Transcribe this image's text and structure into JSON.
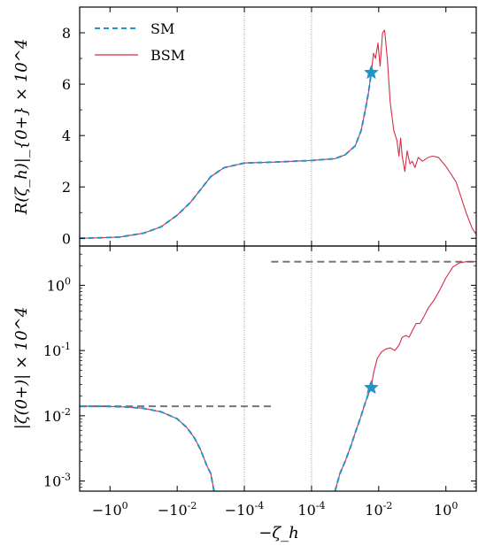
{
  "chart_data": [
    {
      "type": "line",
      "panel": "top",
      "ylabel": "R(ζ_h)|_{0+} × 10^4",
      "ylim": [
        -0.3,
        9.0
      ],
      "yticks": [
        {
          "value": 0,
          "label": "0"
        },
        {
          "value": 2,
          "label": "2"
        },
        {
          "value": 4,
          "label": "4"
        },
        {
          "value": 6,
          "label": "6"
        },
        {
          "value": 8,
          "label": "8"
        }
      ],
      "xscale": "symlog",
      "legend": {
        "placement": "top-left",
        "entries": [
          {
            "label": "SM",
            "style": "dashed",
            "color": "#1f95c8"
          },
          {
            "label": "BSM",
            "style": "solid",
            "color": "#d62d4a"
          }
        ]
      },
      "series": [
        {
          "name": "SM",
          "color": "#1f95c8",
          "style": "dashed",
          "points": [
            [
              -8,
              0
            ],
            [
              -2,
              0.02
            ],
            [
              -0.5,
              0.05
            ],
            [
              -0.1,
              0.2
            ],
            [
              -0.03,
              0.45
            ],
            [
              -0.01,
              0.9
            ],
            [
              -0.004,
              1.4
            ],
            [
              -0.002,
              1.9
            ],
            [
              -0.001,
              2.4
            ],
            [
              -0.0004,
              2.75
            ],
            [
              -0.0001,
              2.93
            ],
            [
              0,
              2.97
            ],
            [
              0.0001,
              3.03
            ],
            [
              0.0005,
              3.1
            ],
            [
              0.001,
              3.25
            ],
            [
              0.002,
              3.6
            ],
            [
              0.003,
              4.2
            ],
            [
              0.004,
              5.0
            ],
            [
              0.005,
              5.7
            ],
            [
              0.006,
              6.45
            ]
          ]
        },
        {
          "name": "BSM",
          "color": "#d62d4a",
          "style": "solid",
          "points": [
            [
              -8,
              0
            ],
            [
              -2,
              0.02
            ],
            [
              -0.5,
              0.05
            ],
            [
              -0.1,
              0.2
            ],
            [
              -0.03,
              0.45
            ],
            [
              -0.01,
              0.9
            ],
            [
              -0.004,
              1.4
            ],
            [
              -0.002,
              1.9
            ],
            [
              -0.001,
              2.4
            ],
            [
              -0.0004,
              2.75
            ],
            [
              -0.0001,
              2.93
            ],
            [
              0,
              2.97
            ],
            [
              0.0001,
              3.03
            ],
            [
              0.0005,
              3.1
            ],
            [
              0.001,
              3.25
            ],
            [
              0.002,
              3.6
            ],
            [
              0.003,
              4.2
            ],
            [
              0.004,
              5.0
            ],
            [
              0.005,
              5.7
            ],
            [
              0.006,
              6.45
            ],
            [
              0.007,
              7.2
            ],
            [
              0.008,
              7.0
            ],
            [
              0.0095,
              7.6
            ],
            [
              0.011,
              6.7
            ],
            [
              0.013,
              8.0
            ],
            [
              0.015,
              8.1
            ],
            [
              0.018,
              7.0
            ],
            [
              0.022,
              5.3
            ],
            [
              0.028,
              4.2
            ],
            [
              0.035,
              3.8
            ],
            [
              0.04,
              3.2
            ],
            [
              0.045,
              3.9
            ],
            [
              0.05,
              3.2
            ],
            [
              0.06,
              2.6
            ],
            [
              0.07,
              3.4
            ],
            [
              0.085,
              2.9
            ],
            [
              0.1,
              3.0
            ],
            [
              0.12,
              2.75
            ],
            [
              0.15,
              3.15
            ],
            [
              0.2,
              3.0
            ],
            [
              0.3,
              3.15
            ],
            [
              0.4,
              3.2
            ],
            [
              0.6,
              3.15
            ],
            [
              1,
              2.8
            ],
            [
              2,
              2.2
            ],
            [
              4,
              1.0
            ],
            [
              6,
              0.4
            ],
            [
              8,
              0.15
            ]
          ]
        }
      ],
      "marker": {
        "x": 0.006,
        "y": 6.45,
        "shape": "star",
        "color": "#1f95c8"
      }
    },
    {
      "type": "line",
      "panel": "bottom",
      "ylabel": "|ζ(0+)| × 10^4",
      "yscale": "log",
      "ylim": [
        0.0007,
        4
      ],
      "yticks": [
        {
          "value": 0.001,
          "label": "10^-3"
        },
        {
          "value": 0.01,
          "label": "10^-2"
        },
        {
          "value": 0.1,
          "label": "10^-1"
        },
        {
          "value": 1,
          "label": "10^0"
        }
      ],
      "xlabel": "−ζ_h",
      "xscale": "symlog",
      "xticks": [
        {
          "value": -1,
          "label": "−10^0"
        },
        {
          "value": -0.01,
          "label": "−10^-2"
        },
        {
          "value": -0.0001,
          "label": "−10^-4"
        },
        {
          "value": 0.0001,
          "label": "10^-4"
        },
        {
          "value": 0.01,
          "label": "10^-2"
        },
        {
          "value": 1,
          "label": "10^0"
        }
      ],
      "vlines": [
        -0.0001,
        0.0001
      ],
      "reference_lines": [
        {
          "y": 0.014,
          "x_from": -8,
          "x_to": -2e-05,
          "style": "dashed",
          "color": "#777777"
        },
        {
          "y": 2.3,
          "x_from": -2e-05,
          "x_to": 8,
          "style": "dashed",
          "color": "#777777"
        }
      ],
      "series": [
        {
          "name": "SM",
          "color": "#1f95c8",
          "style": "dashed",
          "points": [
            [
              -8,
              0.014
            ],
            [
              -2,
              0.014
            ],
            [
              -1,
              0.0139
            ],
            [
              -0.3,
              0.0136
            ],
            [
              -0.1,
              0.013
            ],
            [
              -0.03,
              0.0115
            ],
            [
              -0.01,
              0.009
            ],
            [
              -0.005,
              0.0065
            ],
            [
              -0.003,
              0.0045
            ],
            [
              -0.002,
              0.003
            ],
            [
              -0.0013,
              0.0017
            ],
            [
              -0.001,
              0.0013
            ],
            [
              -0.0008,
              0.0007
            ]
          ]
        },
        {
          "name": "SM",
          "color": "#1f95c8",
          "style": "dashed",
          "points": [
            [
              0.0005,
              0.0007
            ],
            [
              0.0007,
              0.0013
            ],
            [
              0.001,
              0.002
            ],
            [
              0.0015,
              0.0035
            ],
            [
              0.002,
              0.0055
            ],
            [
              0.003,
              0.01
            ],
            [
              0.004,
              0.016
            ],
            [
              0.005,
              0.022
            ],
            [
              0.006,
              0.027
            ]
          ]
        },
        {
          "name": "BSM",
          "color": "#d62d4a",
          "style": "solid",
          "points": [
            [
              -8,
              0.014
            ],
            [
              -2,
              0.014
            ],
            [
              -1,
              0.0139
            ],
            [
              -0.3,
              0.0136
            ],
            [
              -0.1,
              0.013
            ],
            [
              -0.03,
              0.0115
            ],
            [
              -0.01,
              0.009
            ],
            [
              -0.005,
              0.0065
            ],
            [
              -0.003,
              0.0045
            ],
            [
              -0.002,
              0.003
            ],
            [
              -0.0013,
              0.0017
            ],
            [
              -0.001,
              0.0013
            ],
            [
              -0.0008,
              0.0007
            ]
          ]
        },
        {
          "name": "BSM",
          "color": "#d62d4a",
          "style": "solid",
          "points": [
            [
              0.0005,
              0.0007
            ],
            [
              0.0007,
              0.0013
            ],
            [
              0.001,
              0.002
            ],
            [
              0.0015,
              0.0035
            ],
            [
              0.002,
              0.0055
            ],
            [
              0.003,
              0.01
            ],
            [
              0.004,
              0.016
            ],
            [
              0.005,
              0.022
            ],
            [
              0.006,
              0.027
            ],
            [
              0.007,
              0.045
            ],
            [
              0.009,
              0.075
            ],
            [
              0.012,
              0.095
            ],
            [
              0.016,
              0.105
            ],
            [
              0.022,
              0.11
            ],
            [
              0.03,
              0.1
            ],
            [
              0.04,
              0.12
            ],
            [
              0.05,
              0.16
            ],
            [
              0.065,
              0.17
            ],
            [
              0.08,
              0.16
            ],
            [
              0.1,
              0.2
            ],
            [
              0.13,
              0.26
            ],
            [
              0.17,
              0.26
            ],
            [
              0.22,
              0.33
            ],
            [
              0.3,
              0.45
            ],
            [
              0.45,
              0.6
            ],
            [
              0.7,
              0.9
            ],
            [
              1,
              1.3
            ],
            [
              1.6,
              1.9
            ],
            [
              2.5,
              2.2
            ],
            [
              4,
              2.3
            ],
            [
              8,
              2.3
            ]
          ]
        }
      ],
      "marker": {
        "x": 0.006,
        "y": 0.027,
        "shape": "star",
        "color": "#1f95c8"
      }
    }
  ]
}
